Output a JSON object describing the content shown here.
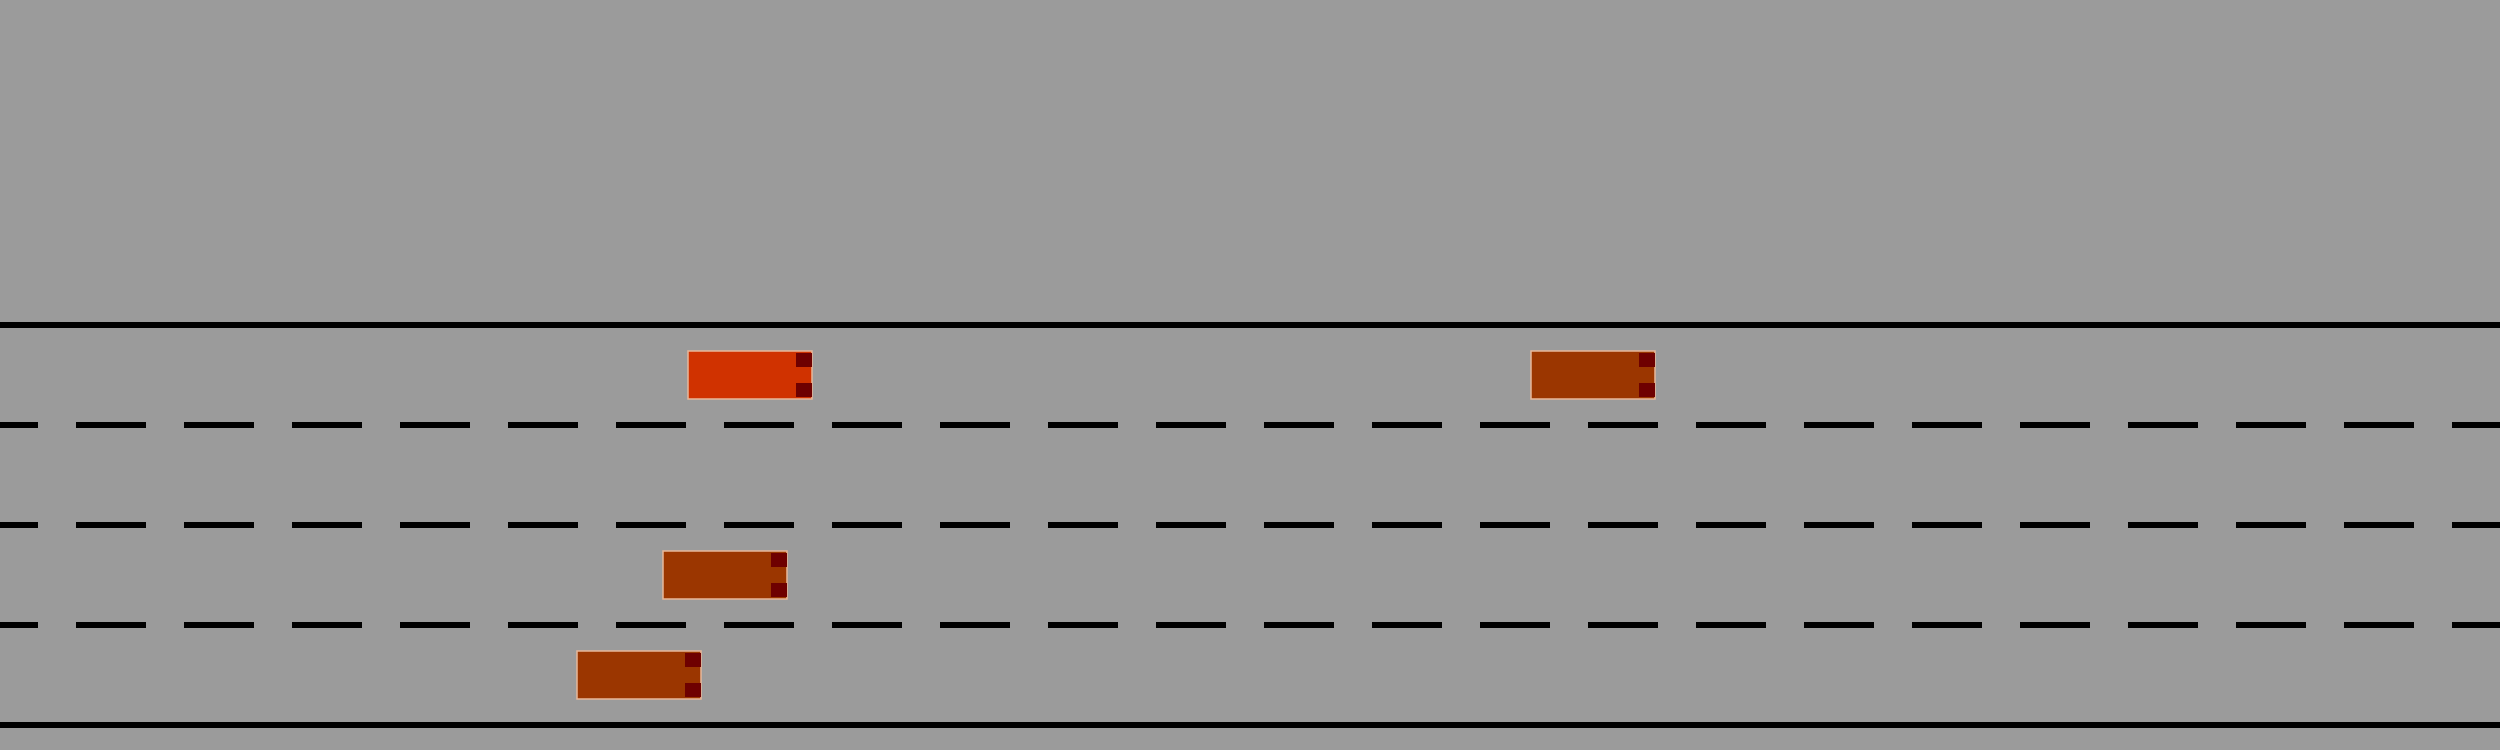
{
  "colors": {
    "background": "#9b9b9b",
    "line": "#000000",
    "car_outline": "#e8b89a",
    "taillight": "#6e0000"
  },
  "road": {
    "lane_count": 4,
    "edge_line_style": "solid",
    "lane_divider_style": "dashed"
  },
  "cars": [
    {
      "name": "player-car",
      "lane": 1,
      "color": "#d03200",
      "facing": "right"
    },
    {
      "name": "traffic-car",
      "lane": 1,
      "color": "#9b3600",
      "facing": "right"
    },
    {
      "name": "traffic-car",
      "lane": 3,
      "color": "#9b3600",
      "facing": "right"
    },
    {
      "name": "traffic-car",
      "lane": 4,
      "color": "#9b3600",
      "facing": "right"
    }
  ]
}
